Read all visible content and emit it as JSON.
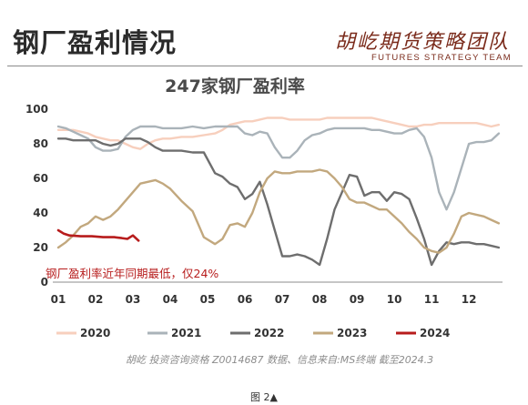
{
  "header": {
    "title": "钢厂盈利情况",
    "logo_cn": "胡屹期货策略团队",
    "logo_en": "FUTURES STRATEGY TEAM"
  },
  "footer": {
    "source": "胡屹 投资咨询资格 Z0014687  数据、信息来自:MS终端  截至2024.3",
    "caption": "图 2▲"
  },
  "chart_data": {
    "type": "line",
    "title": "247家钢厂盈利率",
    "annotation": "钢厂盈利率近年同期最低，仅24%",
    "categories": [
      "01",
      "02",
      "03",
      "04",
      "05",
      "06",
      "07",
      "08",
      "09",
      "10",
      "11",
      "12"
    ],
    "ylim": [
      0,
      100
    ],
    "yticks": [
      0,
      20,
      40,
      60,
      80,
      100
    ],
    "grid": false,
    "legend_position": "bottom",
    "series": [
      {
        "name": "2020",
        "color": "#f7cfbd",
        "x": [
          1,
          1.2,
          1.4,
          1.6,
          1.8,
          2,
          2.2,
          2.4,
          2.6,
          2.8,
          3,
          3.2,
          3.4,
          3.6,
          3.8,
          4,
          4.3,
          4.6,
          4.9,
          5.2,
          5.4,
          5.6,
          5.8,
          6,
          6.2,
          6.4,
          6.6,
          6.8,
          7,
          7.2,
          7.4,
          7.6,
          7.8,
          8,
          8.2,
          8.4,
          8.6,
          8.8,
          9,
          9.2,
          9.4,
          9.6,
          9.8,
          10,
          10.2,
          10.4,
          10.6,
          10.8,
          11,
          11.2,
          11.4,
          11.6,
          11.8,
          12,
          12.2,
          12.4,
          12.6,
          12.8
        ],
        "values": [
          88,
          88,
          88,
          87,
          86,
          84,
          83,
          82,
          82,
          80,
          78,
          77,
          80,
          82,
          83,
          83,
          84,
          84,
          85,
          86,
          88,
          91,
          92,
          93,
          93,
          94,
          95,
          95,
          95,
          94,
          94,
          94,
          94,
          94,
          95,
          95,
          95,
          95,
          95,
          95,
          95,
          94,
          93,
          92,
          91,
          90,
          90,
          91,
          91,
          92,
          92,
          92,
          92,
          92,
          92,
          91,
          90,
          91
        ]
      },
      {
        "name": "2021",
        "color": "#aab3b9",
        "x": [
          1,
          1.2,
          1.4,
          1.6,
          1.8,
          2,
          2.2,
          2.4,
          2.6,
          2.8,
          3,
          3.2,
          3.4,
          3.6,
          3.8,
          4,
          4.3,
          4.6,
          4.9,
          5.2,
          5.4,
          5.6,
          5.8,
          6,
          6.2,
          6.4,
          6.6,
          6.8,
          7,
          7.2,
          7.4,
          7.6,
          7.8,
          8,
          8.2,
          8.4,
          8.6,
          8.8,
          9,
          9.2,
          9.4,
          9.6,
          9.8,
          10,
          10.2,
          10.4,
          10.6,
          10.8,
          11,
          11.2,
          11.4,
          11.6,
          11.8,
          12,
          12.2,
          12.4,
          12.6,
          12.8
        ],
        "values": [
          90,
          89,
          87,
          85,
          83,
          78,
          76,
          76,
          77,
          84,
          88,
          90,
          90,
          90,
          89,
          89,
          89,
          90,
          89,
          90,
          90,
          90,
          90,
          86,
          85,
          87,
          86,
          78,
          72,
          72,
          76,
          82,
          85,
          86,
          88,
          89,
          89,
          89,
          89,
          89,
          88,
          88,
          87,
          86,
          86,
          88,
          89,
          84,
          72,
          52,
          42,
          52,
          66,
          80,
          81,
          81,
          82,
          86
        ]
      },
      {
        "name": "2022",
        "color": "#6e6e6e",
        "x": [
          1,
          1.2,
          1.4,
          1.6,
          1.8,
          2,
          2.2,
          2.4,
          2.6,
          2.8,
          3,
          3.2,
          3.4,
          3.6,
          3.8,
          4,
          4.3,
          4.6,
          4.9,
          5.2,
          5.4,
          5.6,
          5.8,
          6,
          6.2,
          6.4,
          6.6,
          6.8,
          7,
          7.2,
          7.4,
          7.6,
          7.8,
          8,
          8.2,
          8.4,
          8.6,
          8.8,
          9,
          9.2,
          9.4,
          9.6,
          9.8,
          10,
          10.2,
          10.4,
          10.6,
          10.8,
          11,
          11.2,
          11.4,
          11.6,
          11.8,
          12,
          12.2,
          12.4,
          12.6,
          12.8
        ],
        "values": [
          83,
          83,
          82,
          82,
          82,
          82,
          80,
          79,
          80,
          83,
          83,
          83,
          81,
          78,
          76,
          76,
          76,
          75,
          75,
          63,
          61,
          57,
          55,
          48,
          51,
          58,
          45,
          30,
          15,
          15,
          16,
          15,
          13,
          10,
          25,
          42,
          52,
          62,
          61,
          50,
          52,
          52,
          47,
          52,
          51,
          48,
          37,
          25,
          10,
          18,
          23,
          22,
          23,
          23,
          22,
          22,
          21,
          20
        ]
      },
      {
        "name": "2023",
        "color": "#c2a87e",
        "x": [
          1,
          1.2,
          1.4,
          1.6,
          1.8,
          2,
          2.2,
          2.4,
          2.6,
          2.8,
          3,
          3.2,
          3.4,
          3.6,
          3.8,
          4,
          4.3,
          4.6,
          4.9,
          5.2,
          5.4,
          5.6,
          5.8,
          6,
          6.2,
          6.4,
          6.6,
          6.8,
          7,
          7.2,
          7.4,
          7.6,
          7.8,
          8,
          8.2,
          8.4,
          8.6,
          8.8,
          9,
          9.2,
          9.4,
          9.6,
          9.8,
          10,
          10.2,
          10.4,
          10.6,
          10.8,
          11,
          11.2,
          11.4,
          11.6,
          11.8,
          12,
          12.2,
          12.4,
          12.6,
          12.8
        ],
        "values": [
          20,
          23,
          27,
          32,
          34,
          38,
          36,
          38,
          42,
          47,
          52,
          57,
          58,
          59,
          57,
          54,
          47,
          41,
          26,
          22,
          25,
          33,
          34,
          32,
          40,
          52,
          60,
          64,
          63,
          63,
          64,
          64,
          64,
          65,
          64,
          60,
          55,
          48,
          46,
          46,
          44,
          42,
          42,
          38,
          34,
          29,
          25,
          20,
          18,
          17,
          20,
          28,
          38,
          40,
          39,
          38,
          36,
          34
        ]
      },
      {
        "name": "2024",
        "color": "#b71c1c",
        "x": [
          1,
          1.15,
          1.3,
          1.6,
          1.9,
          2.2,
          2.5,
          2.7,
          2.85,
          3,
          3.15
        ],
        "values": [
          30,
          28,
          27,
          26.5,
          26.5,
          26,
          26,
          25.5,
          25,
          27,
          24
        ]
      }
    ]
  }
}
